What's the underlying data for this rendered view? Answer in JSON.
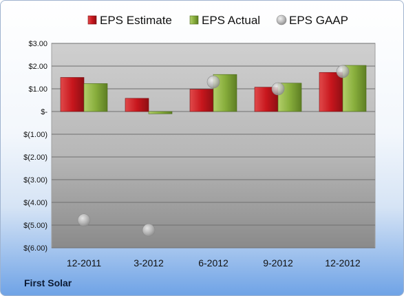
{
  "company": "First Solar",
  "colors": {
    "estimate": "#c0151c",
    "actual": "#86ad3a",
    "gaap": "#b7b7b7"
  },
  "chart_data": {
    "type": "bar",
    "categories": [
      "12-2011",
      "3-2012",
      "6-2012",
      "9-2012",
      "12-2012"
    ],
    "series": [
      {
        "name": "EPS Estimate",
        "values": [
          1.5,
          0.58,
          0.98,
          1.07,
          1.72
        ]
      },
      {
        "name": "EPS Actual",
        "values": [
          1.23,
          -0.1,
          1.63,
          1.25,
          2.03
        ]
      },
      {
        "name": "EPS GAAP",
        "kind": "scatter",
        "values": [
          -4.78,
          -5.22,
          1.3,
          1.0,
          1.76
        ]
      }
    ],
    "ylim": [
      -6,
      3
    ],
    "yticks": [
      3,
      2,
      1,
      0,
      -1,
      -2,
      -3,
      -4,
      -5,
      -6
    ],
    "ytick_labels": [
      "$3.00",
      "$2.00",
      "$1.00",
      "$-",
      "$(1.00)",
      "$(2.00)",
      "$(3.00)",
      "$(4.00)",
      "$(5.00)",
      "$(6.00)"
    ],
    "grid": true,
    "legend_position": "top"
  }
}
